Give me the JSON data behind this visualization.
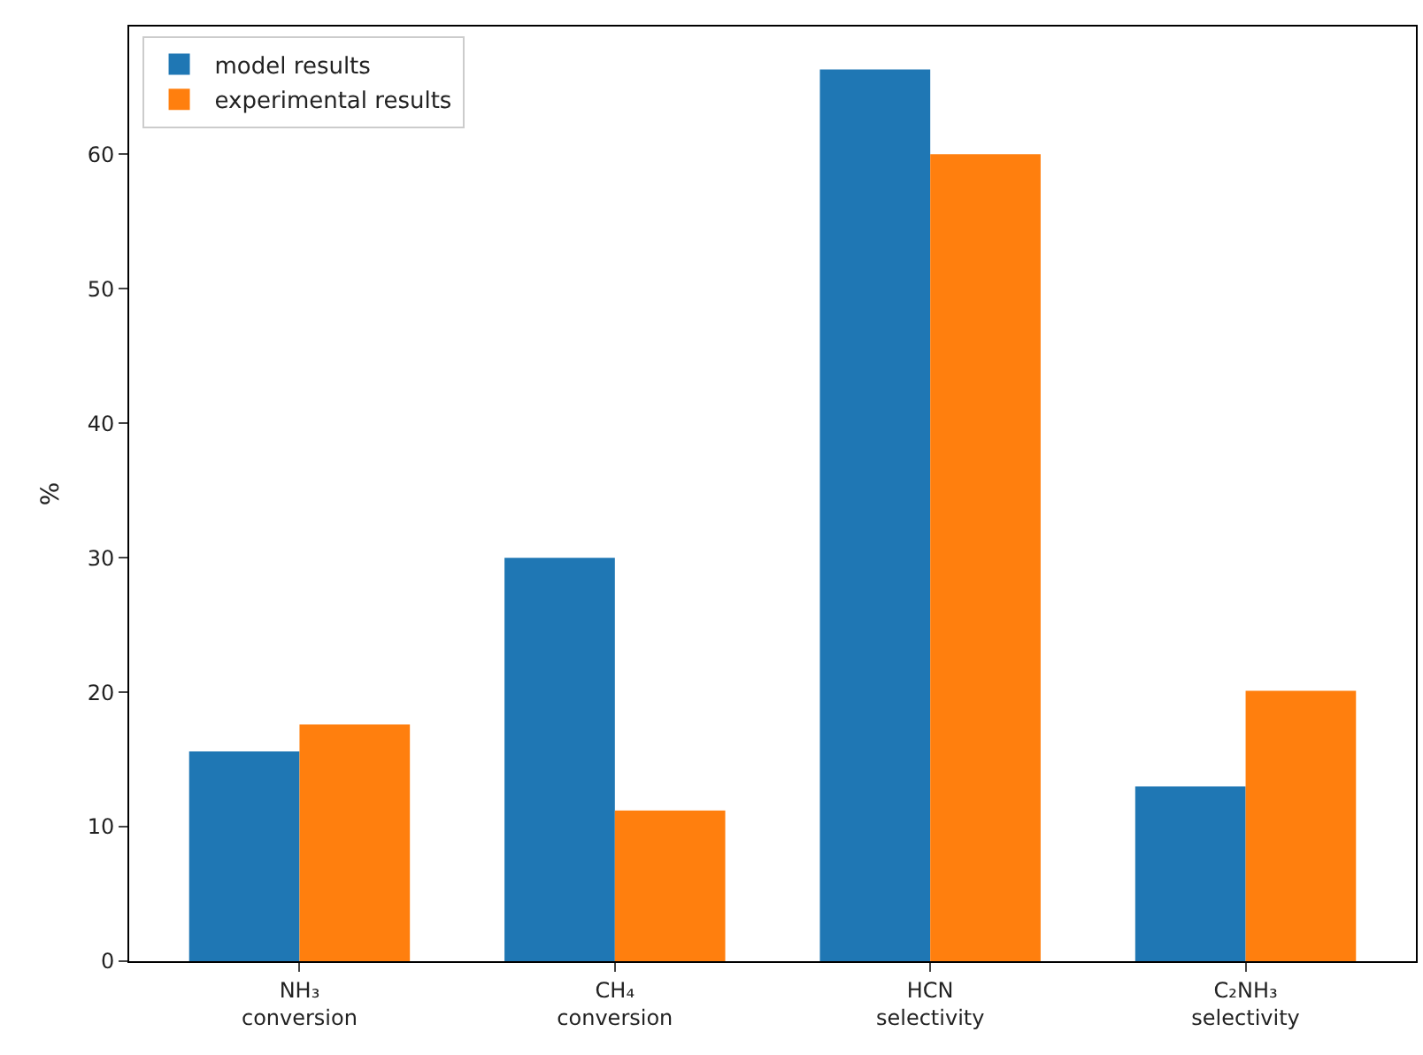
{
  "chart_data": {
    "type": "bar",
    "ylabel": "%",
    "categories": [
      "NH₃\nconversion",
      "CH₄\nconversion",
      "HCN\nselectivity",
      "C₂NH₃\nselectivity"
    ],
    "series": [
      {
        "name": "model results",
        "color": "#1f77b4",
        "values": [
          15.6,
          30.0,
          66.3,
          13.0
        ]
      },
      {
        "name": "experimental results",
        "color": "#ff7f0e",
        "values": [
          17.6,
          11.2,
          60.0,
          20.1
        ]
      }
    ],
    "ylim": [
      0,
      69.5
    ],
    "yticks": [
      0,
      10,
      20,
      30,
      40,
      50,
      60
    ],
    "grid": false,
    "legend": "top left"
  }
}
